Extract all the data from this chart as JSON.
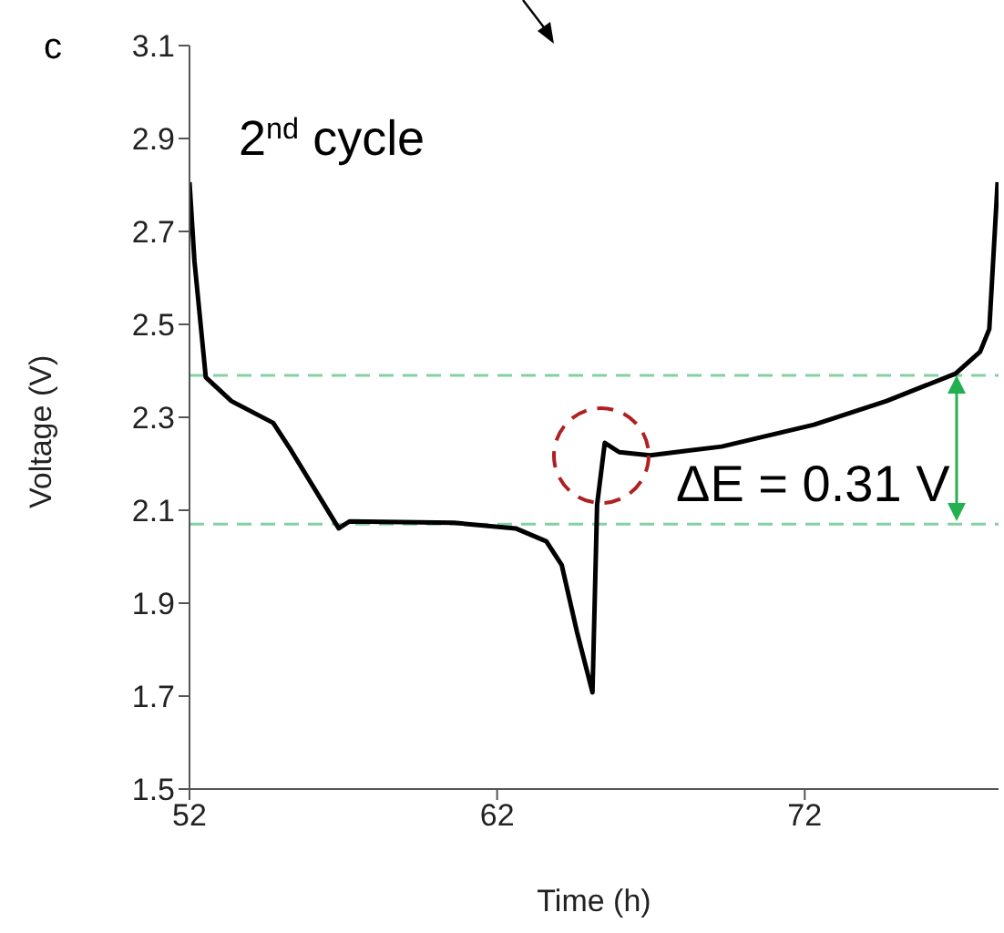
{
  "chart_data": {
    "type": "line",
    "xlabel": "Time (h)",
    "ylabel": "Voltage (V)",
    "annotations": [
      "c",
      "2$^{nd}$ cycle",
      "ΔE = 0.31 V"
    ],
    "xlim": [
      52,
      78.3
    ],
    "xticks": [
      52,
      62,
      72
    ],
    "ylim": [
      1.5,
      3.1
    ],
    "yticks": [
      1.5,
      1.7,
      1.9,
      2.1,
      2.3,
      2.5,
      2.7,
      2.9,
      3.1
    ],
    "grid": false,
    "legend": false,
    "marker": "none",
    "line_style": "solid",
    "ref_lines": [
      {
        "axis": "y",
        "value": 2.07,
        "color": "#82d0a4",
        "line_style": "dashed"
      },
      {
        "axis": "y",
        "value": 2.39,
        "color": "#82d0a4",
        "line_style": "dashed"
      }
    ],
    "series": [
      {
        "color": "#000000",
        "x": [
          52,
          52.16,
          52.53,
          53.36,
          54.72,
          55.3,
          56.85,
          57.2,
          60.6,
          62.6,
          63.6,
          64.1,
          64.6,
          65.1,
          65.25,
          65.5,
          65.97,
          66.97,
          69.3,
          72.3,
          74.66,
          76.9,
          77.7,
          78,
          78.27
        ],
        "values": [
          2.806,
          2.637,
          2.386,
          2.335,
          2.288,
          2.229,
          2.061,
          2.076,
          2.073,
          2.061,
          2.033,
          1.982,
          1.837,
          1.708,
          2.112,
          2.245,
          2.225,
          2.218,
          2.237,
          2.284,
          2.335,
          2.394,
          2.441,
          2.49,
          2.806
        ]
      }
    ]
  }
}
